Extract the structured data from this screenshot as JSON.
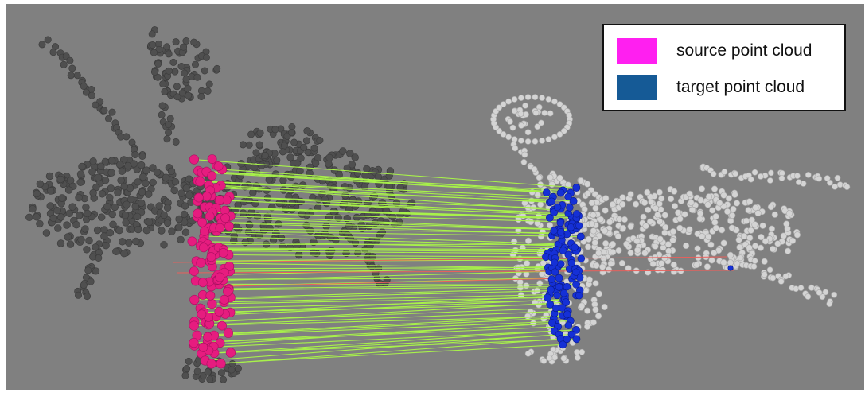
{
  "legend": {
    "items": [
      {
        "label": "source point cloud",
        "color": "#ff1ff0"
      },
      {
        "label": "target point cloud",
        "color": "#155a96"
      }
    ]
  },
  "colors": {
    "background": "#808080",
    "source_cloud_points": "#4f4f4f",
    "target_cloud_points": "#d4d4d4",
    "source_keypoints": "#e61c7f",
    "target_keypoints": "#1530d6",
    "inlier_correspondence": "#a8f24a",
    "outlier_correspondence": "#e8605c"
  }
}
